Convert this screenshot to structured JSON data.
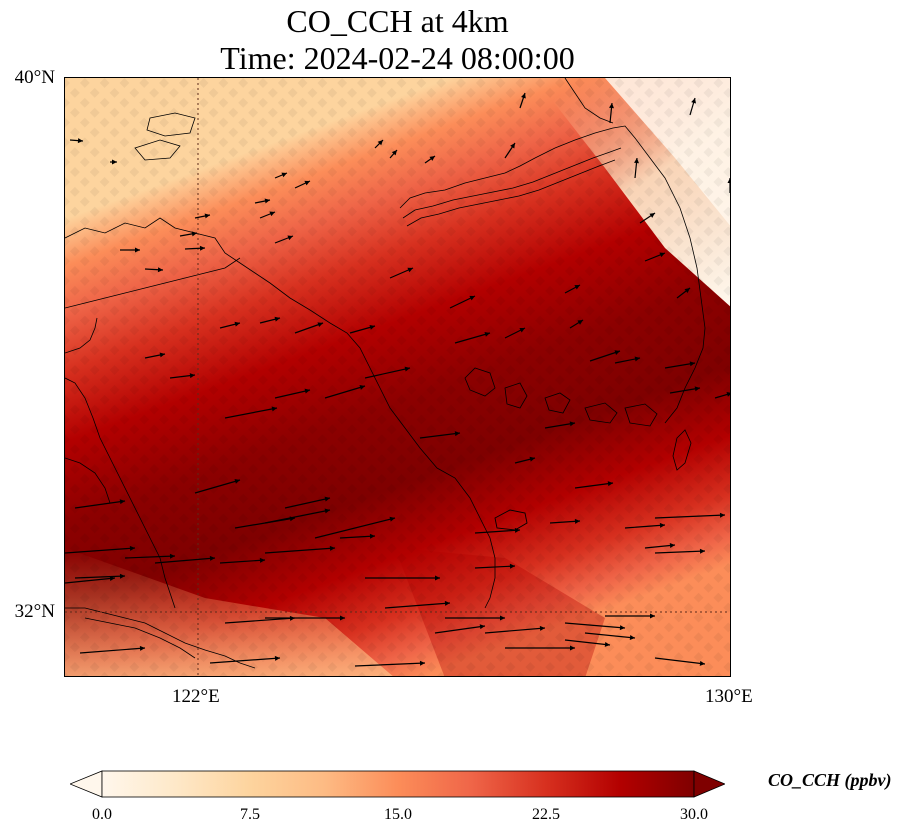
{
  "title": {
    "line1": "CO_CCH at 4km",
    "line2": "Time: 2024-02-24 08:00:00"
  },
  "map": {
    "variable": "CO_CCH",
    "level": "4km",
    "time": "2024-02-24 08:00:00",
    "projection": "lat-lon",
    "lon_range": [
      120,
      130
    ],
    "lat_range": [
      31,
      40
    ],
    "lat_labels": [
      "40°N",
      "32°N"
    ],
    "lon_labels": [
      "122°E",
      "130°E"
    ],
    "gridlines": {
      "lon": 122,
      "lat": 32,
      "style": "dotted"
    },
    "colormap": "OrRd",
    "features": [
      "coastlines",
      "wind-vectors"
    ]
  },
  "colorbar": {
    "label": "CO_CCH (ppbv)",
    "ticks": [
      "0.0",
      "7.5",
      "15.0",
      "22.5",
      "30.0"
    ],
    "min": 0,
    "max": 30,
    "extend": "both",
    "colors": [
      "#fff7ec",
      "#fee8c8",
      "#fdd49e",
      "#fdbb84",
      "#fc8d59",
      "#ef6548",
      "#d7301f",
      "#b30000",
      "#7f0000"
    ]
  }
}
